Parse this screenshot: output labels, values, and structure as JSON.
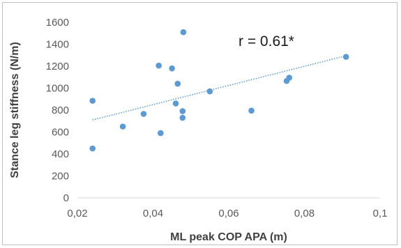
{
  "chart_data": {
    "type": "scatter",
    "xlabel": "ML peak COP APA (m)",
    "ylabel": "Stance leg stiffness (N/m)",
    "xlim": [
      0.02,
      0.1
    ],
    "ylim": [
      0,
      1600
    ],
    "x_ticks": [
      0.02,
      0.04,
      0.06,
      0.08,
      0.1
    ],
    "x_tick_labels": [
      "0,02",
      "0,04",
      "0,06",
      "0,08",
      "0,1"
    ],
    "y_ticks": [
      0,
      200,
      400,
      600,
      800,
      1000,
      1200,
      1400,
      1600
    ],
    "y_tick_labels": [
      "0",
      "200",
      "400",
      "600",
      "800",
      "1000",
      "1200",
      "1400",
      "1600"
    ],
    "grid": false,
    "annotation": "r = 0.61*",
    "points": [
      {
        "x": 0.024,
        "y": 450
      },
      {
        "x": 0.024,
        "y": 885
      },
      {
        "x": 0.032,
        "y": 650
      },
      {
        "x": 0.0375,
        "y": 765
      },
      {
        "x": 0.0415,
        "y": 1205
      },
      {
        "x": 0.042,
        "y": 590
      },
      {
        "x": 0.045,
        "y": 1180
      },
      {
        "x": 0.046,
        "y": 860
      },
      {
        "x": 0.0465,
        "y": 1040
      },
      {
        "x": 0.0478,
        "y": 790
      },
      {
        "x": 0.0478,
        "y": 730
      },
      {
        "x": 0.048,
        "y": 1510
      },
      {
        "x": 0.055,
        "y": 970
      },
      {
        "x": 0.066,
        "y": 795
      },
      {
        "x": 0.0753,
        "y": 1065
      },
      {
        "x": 0.076,
        "y": 1095
      },
      {
        "x": 0.091,
        "y": 1285
      }
    ],
    "trendline": {
      "x": [
        0.024,
        0.091
      ],
      "y": [
        710,
        1295
      ]
    },
    "colors": {
      "points": "#5b9bd5",
      "trendline": "#5b9bd5",
      "axis": "#d9d9d9"
    }
  }
}
